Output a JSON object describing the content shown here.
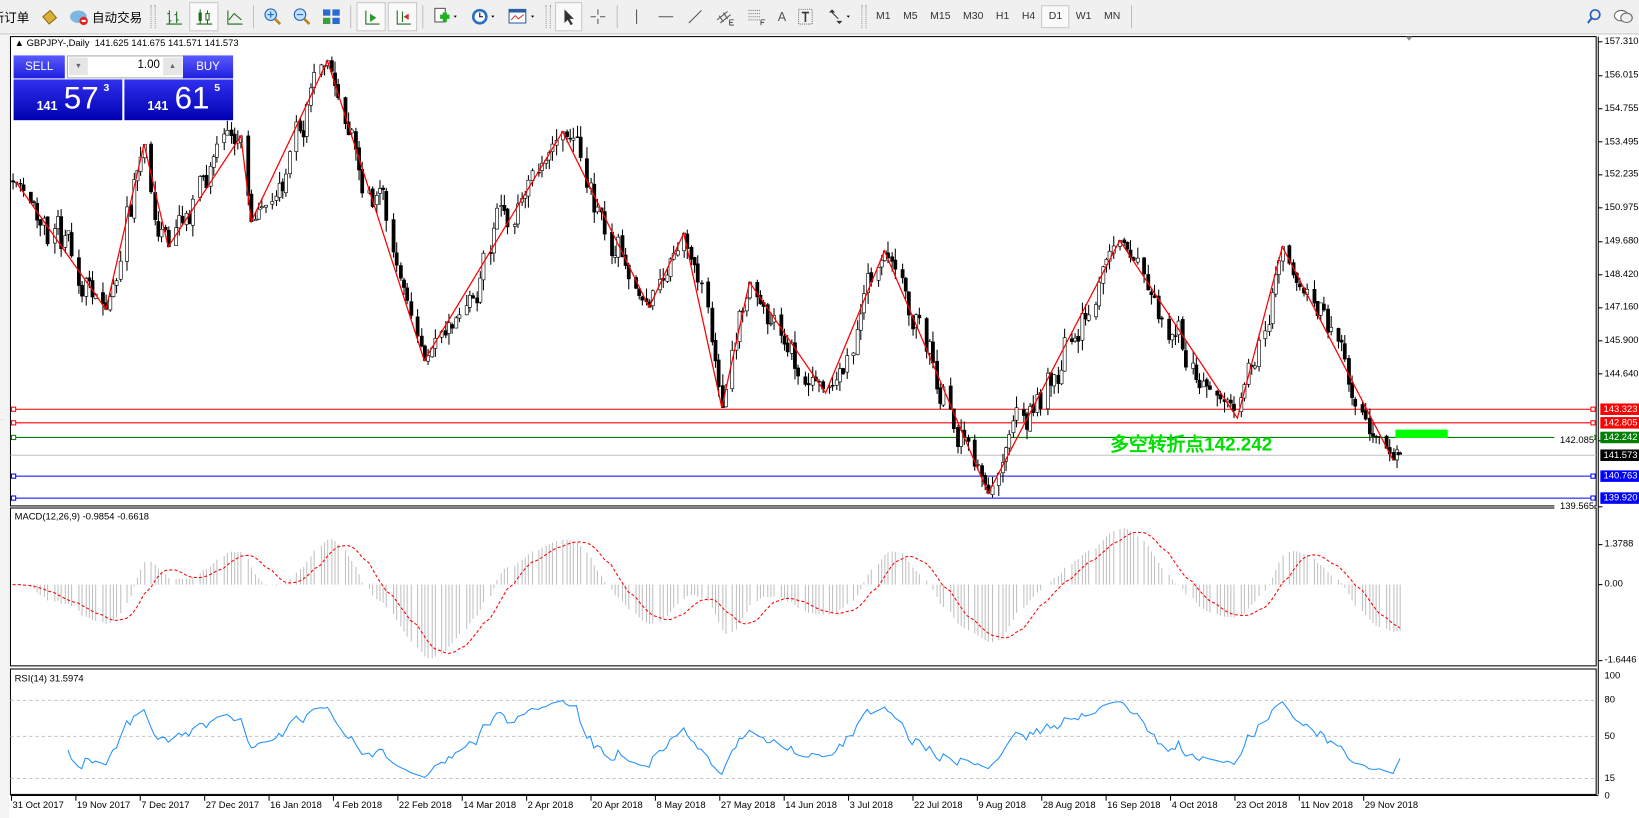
{
  "toolbar": {
    "new_order": "新订单",
    "auto_trading": "自动交易",
    "timeframes": [
      "M1",
      "M5",
      "M15",
      "M30",
      "H1",
      "H4",
      "D1",
      "W1",
      "MN"
    ],
    "active_timeframe": "D1",
    "text_tool": "A"
  },
  "chart": {
    "symbol_header": "GBPJPY-,Daily",
    "ohlc": "141.625 141.675 141.571 141.573",
    "annotation": "多空转折点142.242",
    "annotation_color": "#00e000"
  },
  "trade_panel": {
    "sell_label": "SELL",
    "buy_label": "BUY",
    "lot": "1.00",
    "sell_price": {
      "prefix": "141",
      "big": "57",
      "sup": "3"
    },
    "buy_price": {
      "prefix": "141",
      "big": "61",
      "sup": "5"
    }
  },
  "chart_data": [
    {
      "type": "candlestick",
      "symbol": "GBPJPY",
      "period": "Daily",
      "last_bar": {
        "date": "2018-12-06",
        "open": 141.625,
        "high": 141.675,
        "low": 141.571,
        "close": 141.573
      },
      "y_axis_ticks": [
        "157.310",
        "156.015",
        "154.755",
        "153.495",
        "152.235",
        "150.975",
        "149.680",
        "148.420",
        "147.160",
        "145.900",
        "144.640",
        "142.085",
        "139.565"
      ],
      "ylim": [
        139.565,
        157.31
      ],
      "x_axis_ticks": [
        "31 Oct 2017",
        "19 Nov 2017",
        "7 Dec 2017",
        "27 Dec 2017",
        "16 Jan 2018",
        "4 Feb 2018",
        "22 Feb 2018",
        "14 Mar 2018",
        "2 Apr 2018",
        "20 Apr 2018",
        "8 May 2018",
        "27 May 2018",
        "14 Jun 2018",
        "3 Jul 2018",
        "22 Jul 2018",
        "9 Aug 2018",
        "28 Aug 2018",
        "16 Sep 2018",
        "4 Oct 2018",
        "23 Oct 2018",
        "11 Nov 2018",
        "29 Nov 2018"
      ],
      "x_axis_start": "2017-10-31",
      "zigzag": [
        {
          "date": "2017-11-01",
          "price": 151.96
        },
        {
          "date": "2017-11-27",
          "price": 147.1
        },
        {
          "date": "2017-12-08",
          "price": 153.4
        },
        {
          "date": "2017-12-15",
          "price": 149.49
        },
        {
          "date": "2018-01-05",
          "price": 153.72
        },
        {
          "date": "2018-01-08",
          "price": 150.45
        },
        {
          "date": "2018-01-30",
          "price": 156.59
        },
        {
          "date": "2018-02-27",
          "price": 145.15
        },
        {
          "date": "2018-04-08",
          "price": 153.88
        },
        {
          "date": "2018-05-03",
          "price": 147.18
        },
        {
          "date": "2018-05-13",
          "price": 150.01
        },
        {
          "date": "2018-05-24",
          "price": 143.35
        },
        {
          "date": "2018-06-01",
          "price": 148.14
        },
        {
          "date": "2018-06-23",
          "price": 143.91
        },
        {
          "date": "2018-07-10",
          "price": 149.33
        },
        {
          "date": "2018-08-09",
          "price": 140.08
        },
        {
          "date": "2018-09-16",
          "price": 149.73
        },
        {
          "date": "2018-10-20",
          "price": 142.95
        },
        {
          "date": "2018-11-02",
          "price": 149.49
        },
        {
          "date": "2018-12-04",
          "price": 141.35
        }
      ],
      "levels": [
        {
          "label": "143.323",
          "price": 143.323,
          "color": "#ff0000"
        },
        {
          "label": "142.805",
          "price": 142.805,
          "color": "#ff0000"
        },
        {
          "label": "142.242",
          "price": 142.242,
          "color": "#008000"
        },
        {
          "label": "141.573",
          "price": 141.573,
          "color": "#000000",
          "line": "#c0c0c0"
        },
        {
          "label": "140.763",
          "price": 140.763,
          "color": "#0000ff"
        },
        {
          "label": "139.920",
          "price": 139.92,
          "color": "#0000ff"
        }
      ],
      "colors": {
        "candle": "#000000",
        "zigzag": "#ff0000",
        "marker": "#00ff00"
      }
    },
    {
      "type": "bar+line",
      "title": "MACD(12,26,9) -0.9854 -0.6618",
      "y_axis_ticks": [
        "1.3788",
        "0.00",
        "-1.6446"
      ],
      "ylim": [
        -1.6446,
        1.3788
      ],
      "colors": {
        "histogram": "#c0c0c0",
        "signal": "#ff0000"
      }
    },
    {
      "type": "line",
      "title": "RSI(14) 31.5974",
      "y_axis_ticks": [
        "100",
        "80",
        "50",
        "15",
        "0"
      ],
      "ylim": [
        0,
        100
      ],
      "levels": [
        80,
        50,
        15
      ],
      "last_value": 31.5974,
      "colors": {
        "line": "#1e90ff"
      }
    }
  ]
}
